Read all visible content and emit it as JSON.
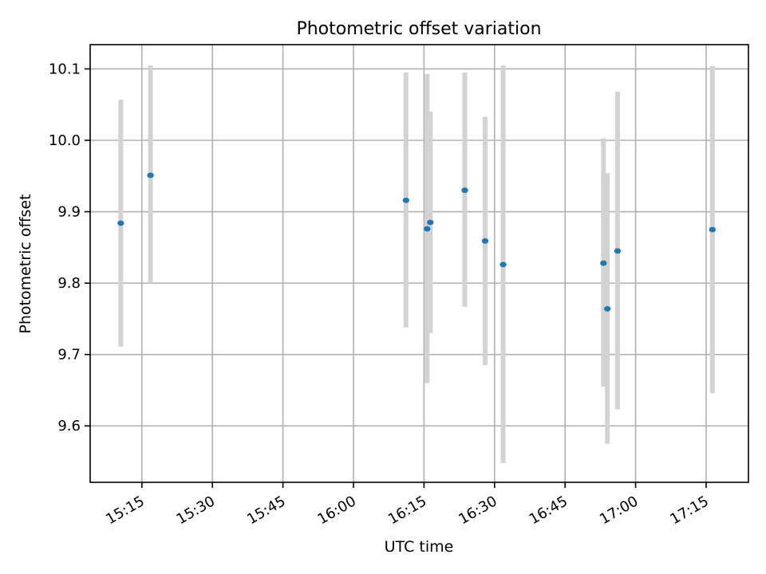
{
  "chart_data": {
    "type": "scatter",
    "title": "Photometric offset variation",
    "xlabel": "UTC time",
    "ylabel": "Photometric offset",
    "x_axis": {
      "type": "time",
      "range": [
        "15:04",
        "17:24"
      ],
      "ticks": [
        "15:15",
        "15:30",
        "15:45",
        "16:00",
        "16:15",
        "16:30",
        "16:45",
        "17:00",
        "17:15"
      ]
    },
    "y_axis": {
      "range": [
        9.521,
        10.134
      ],
      "ticks": [
        9.6,
        9.7,
        9.8,
        9.9,
        10.0,
        10.1
      ],
      "tick_labels": [
        "9.6",
        "9.7",
        "9.8",
        "9.9",
        "10.0",
        "10.1"
      ]
    },
    "grid": true,
    "points": [
      {
        "x": "15:10:30",
        "y": 9.884,
        "ylow": 9.711,
        "yhigh": 10.057
      },
      {
        "x": "15:16:50",
        "y": 9.951,
        "ylow": 9.8,
        "yhigh": 10.105
      },
      {
        "x": "16:11:10",
        "y": 9.916,
        "ylow": 9.738,
        "yhigh": 10.095
      },
      {
        "x": "16:15:40",
        "y": 9.876,
        "ylow": 9.66,
        "yhigh": 10.093
      },
      {
        "x": "16:16:20",
        "y": 9.885,
        "ylow": 9.73,
        "yhigh": 10.04
      },
      {
        "x": "16:23:40",
        "y": 9.93,
        "ylow": 9.767,
        "yhigh": 10.095
      },
      {
        "x": "16:28:00",
        "y": 9.859,
        "ylow": 9.685,
        "yhigh": 10.033
      },
      {
        "x": "16:31:50",
        "y": 9.826,
        "ylow": 9.548,
        "yhigh": 10.105
      },
      {
        "x": "16:53:10",
        "y": 9.828,
        "ylow": 9.655,
        "yhigh": 10.003
      },
      {
        "x": "16:54:00",
        "y": 9.764,
        "ylow": 9.575,
        "yhigh": 9.954
      },
      {
        "x": "16:56:10",
        "y": 9.845,
        "ylow": 9.623,
        "yhigh": 10.068
      },
      {
        "x": "17:16:20",
        "y": 9.875,
        "ylow": 9.646,
        "yhigh": 10.104
      }
    ],
    "colors": {
      "points": "#1f77b4",
      "error_bars": "#d3d3d3",
      "grid": "#b0b0b0"
    }
  }
}
